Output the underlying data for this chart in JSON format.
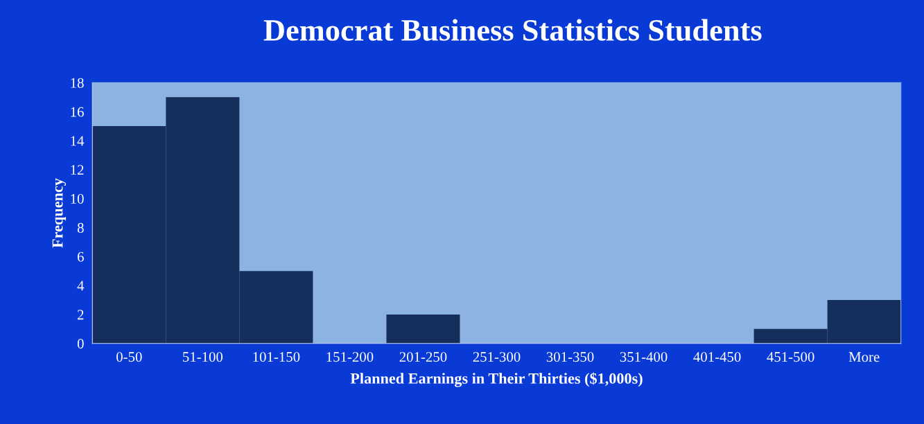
{
  "chart_data": {
    "type": "bar",
    "title": "Democrat Business Statistics Students",
    "xlabel": "Planned Earnings in Their Thirties ($1,000s)",
    "ylabel": "Frequency",
    "categories": [
      "0-50",
      "51-100",
      "101-150",
      "151-200",
      "201-250",
      "251-300",
      "301-350",
      "351-400",
      "401-450",
      "451-500",
      "More"
    ],
    "values": [
      15,
      17,
      5,
      0,
      2,
      0,
      0,
      0,
      0,
      1,
      3
    ],
    "color": "#0b2b66",
    "ylim": [
      0,
      18
    ],
    "yticks": [
      0,
      2,
      4,
      6,
      8,
      10,
      12,
      14,
      16,
      18
    ],
    "grid": false,
    "legend": false
  }
}
